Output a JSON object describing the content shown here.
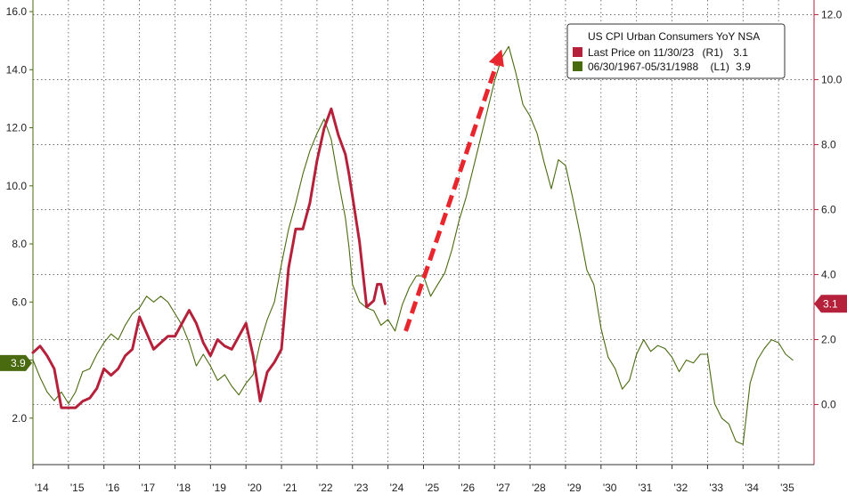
{
  "chart_data": {
    "type": "line",
    "title": "",
    "xlabel": "",
    "ylabel": "",
    "grid": true,
    "legend_position": "top-right",
    "legend": {
      "title": "US CPI Urban Consumers YoY NSA",
      "entries": [
        {
          "label": "Last Price on 11/30/23",
          "axis_tag": "(R1)",
          "value": "3.1",
          "color": "#b5213a"
        },
        {
          "label": "06/30/1967-05/31/1988",
          "axis_tag": "(L1)",
          "value": "3.9",
          "color": "#4a6a10"
        }
      ]
    },
    "x_axis": {
      "range": [
        2014.0,
        2036.0
      ],
      "ticks": [
        {
          "value": 2014,
          "label": "'14"
        },
        {
          "value": 2015,
          "label": "'15"
        },
        {
          "value": 2016,
          "label": "'16"
        },
        {
          "value": 2017,
          "label": "'17"
        },
        {
          "value": 2018,
          "label": "'18"
        },
        {
          "value": 2019,
          "label": "'19"
        },
        {
          "value": 2020,
          "label": "'20"
        },
        {
          "value": 2021,
          "label": "'21"
        },
        {
          "value": 2022,
          "label": "'22"
        },
        {
          "value": 2023,
          "label": "'23"
        },
        {
          "value": 2024,
          "label": "'24"
        },
        {
          "value": 2025,
          "label": "'25"
        },
        {
          "value": 2026,
          "label": "'26"
        },
        {
          "value": 2027,
          "label": "'27"
        },
        {
          "value": 2028,
          "label": "'28"
        },
        {
          "value": 2029,
          "label": "'29"
        },
        {
          "value": 2030,
          "label": "'30"
        },
        {
          "value": 2031,
          "label": "'31"
        },
        {
          "value": 2032,
          "label": "'32"
        },
        {
          "value": 2033,
          "label": "'33"
        },
        {
          "value": 2034,
          "label": "'34"
        },
        {
          "value": 2035,
          "label": "'35"
        }
      ]
    },
    "left_axis": {
      "range": [
        0.4,
        16.4
      ],
      "ticks": [
        {
          "value": 2,
          "label": "2.0"
        },
        {
          "value": 4,
          "label": "4.0"
        },
        {
          "value": 6,
          "label": "6.0"
        },
        {
          "value": 8,
          "label": "8.0"
        },
        {
          "value": 10,
          "label": "10.0"
        },
        {
          "value": 12,
          "label": "12.0"
        },
        {
          "value": 14,
          "label": "14.0"
        },
        {
          "value": 16,
          "label": "16.0"
        }
      ],
      "badge": {
        "value": 3.9,
        "label": "3.9",
        "color": "#4a6a10"
      }
    },
    "right_axis": {
      "range": [
        -1.85,
        12.45
      ],
      "ticks": [
        {
          "value": 0,
          "label": "0.0"
        },
        {
          "value": 2,
          "label": "2.0"
        },
        {
          "value": 4,
          "label": "4.0"
        },
        {
          "value": 6,
          "label": "6.0"
        },
        {
          "value": 8,
          "label": "8.0"
        },
        {
          "value": 10,
          "label": "10.0"
        },
        {
          "value": 12,
          "label": "12.0"
        }
      ],
      "badge": {
        "value": 3.1,
        "label": "3.1",
        "color": "#b5213a"
      }
    },
    "arrow": {
      "from": [
        2024.5,
        5.0
      ],
      "to": [
        2027.2,
        14.7
      ],
      "color": "#e8262e"
    },
    "series": [
      {
        "name": "06/30/1967-05/31/1988",
        "axis": "left",
        "color": "#4a6a10",
        "points": [
          [
            2014.0,
            4.0
          ],
          [
            2014.2,
            3.4
          ],
          [
            2014.4,
            2.9
          ],
          [
            2014.6,
            2.6
          ],
          [
            2014.8,
            2.9
          ],
          [
            2015.0,
            2.5
          ],
          [
            2015.2,
            2.9
          ],
          [
            2015.4,
            3.6
          ],
          [
            2015.6,
            3.7
          ],
          [
            2015.8,
            4.2
          ],
          [
            2016.0,
            4.6
          ],
          [
            2016.2,
            4.9
          ],
          [
            2016.4,
            4.7
          ],
          [
            2016.6,
            5.2
          ],
          [
            2016.8,
            5.6
          ],
          [
            2017.0,
            5.8
          ],
          [
            2017.2,
            6.2
          ],
          [
            2017.4,
            6.0
          ],
          [
            2017.6,
            6.2
          ],
          [
            2017.8,
            6.0
          ],
          [
            2018.0,
            5.6
          ],
          [
            2018.2,
            5.2
          ],
          [
            2018.4,
            4.6
          ],
          [
            2018.6,
            3.8
          ],
          [
            2018.8,
            4.2
          ],
          [
            2019.0,
            3.8
          ],
          [
            2019.2,
            3.3
          ],
          [
            2019.4,
            3.5
          ],
          [
            2019.6,
            3.1
          ],
          [
            2019.8,
            2.8
          ],
          [
            2020.0,
            3.2
          ],
          [
            2020.2,
            3.5
          ],
          [
            2020.4,
            4.6
          ],
          [
            2020.6,
            5.4
          ],
          [
            2020.8,
            6.0
          ],
          [
            2021.0,
            7.3
          ],
          [
            2021.2,
            8.5
          ],
          [
            2021.4,
            9.4
          ],
          [
            2021.6,
            10.4
          ],
          [
            2021.8,
            11.2
          ],
          [
            2022.0,
            11.8
          ],
          [
            2022.2,
            12.3
          ],
          [
            2022.4,
            11.6
          ],
          [
            2022.6,
            10.2
          ],
          [
            2022.8,
            8.9
          ],
          [
            2022.9,
            7.9
          ],
          [
            2023.0,
            6.6
          ],
          [
            2023.2,
            6.0
          ],
          [
            2023.4,
            5.8
          ],
          [
            2023.6,
            5.7
          ],
          [
            2023.8,
            5.2
          ],
          [
            2024.0,
            5.4
          ],
          [
            2024.2,
            5.0
          ],
          [
            2024.4,
            5.9
          ],
          [
            2024.6,
            6.5
          ],
          [
            2024.8,
            6.9
          ],
          [
            2025.0,
            6.9
          ],
          [
            2025.2,
            6.2
          ],
          [
            2025.4,
            6.6
          ],
          [
            2025.6,
            7.0
          ],
          [
            2025.8,
            7.8
          ],
          [
            2026.0,
            8.8
          ],
          [
            2026.2,
            9.6
          ],
          [
            2026.4,
            10.6
          ],
          [
            2026.6,
            11.6
          ],
          [
            2026.8,
            12.6
          ],
          [
            2027.0,
            13.6
          ],
          [
            2027.2,
            14.4
          ],
          [
            2027.4,
            14.8
          ],
          [
            2027.6,
            13.9
          ],
          [
            2027.8,
            12.8
          ],
          [
            2028.0,
            12.4
          ],
          [
            2028.2,
            11.8
          ],
          [
            2028.4,
            10.8
          ],
          [
            2028.6,
            9.9
          ],
          [
            2028.8,
            10.9
          ],
          [
            2029.0,
            10.7
          ],
          [
            2029.2,
            9.6
          ],
          [
            2029.4,
            8.4
          ],
          [
            2029.6,
            7.1
          ],
          [
            2029.8,
            6.6
          ],
          [
            2030.0,
            5.1
          ],
          [
            2030.2,
            4.1
          ],
          [
            2030.4,
            3.7
          ],
          [
            2030.6,
            3.0
          ],
          [
            2030.8,
            3.3
          ],
          [
            2031.0,
            4.2
          ],
          [
            2031.2,
            4.7
          ],
          [
            2031.4,
            4.3
          ],
          [
            2031.6,
            4.5
          ],
          [
            2031.8,
            4.4
          ],
          [
            2032.0,
            4.1
          ],
          [
            2032.2,
            3.6
          ],
          [
            2032.4,
            4.0
          ],
          [
            2032.6,
            3.9
          ],
          [
            2032.8,
            4.2
          ],
          [
            2033.0,
            4.2
          ],
          [
            2033.2,
            2.5
          ],
          [
            2033.4,
            2.0
          ],
          [
            2033.6,
            1.8
          ],
          [
            2033.8,
            1.2
          ],
          [
            2034.0,
            1.1
          ],
          [
            2034.2,
            3.2
          ],
          [
            2034.4,
            4.0
          ],
          [
            2034.6,
            4.4
          ],
          [
            2034.8,
            4.7
          ],
          [
            2035.0,
            4.6
          ],
          [
            2035.2,
            4.2
          ],
          [
            2035.4,
            4.0
          ]
        ]
      },
      {
        "name": "Last Price on 11/30/23",
        "axis": "right",
        "color": "#b5213a",
        "points": [
          [
            2014.0,
            1.6
          ],
          [
            2014.2,
            1.8
          ],
          [
            2014.4,
            1.5
          ],
          [
            2014.6,
            1.1
          ],
          [
            2014.8,
            -0.1
          ],
          [
            2015.0,
            -0.1
          ],
          [
            2015.2,
            -0.1
          ],
          [
            2015.4,
            0.1
          ],
          [
            2015.6,
            0.2
          ],
          [
            2015.8,
            0.5
          ],
          [
            2016.0,
            1.1
          ],
          [
            2016.2,
            0.9
          ],
          [
            2016.4,
            1.1
          ],
          [
            2016.6,
            1.5
          ],
          [
            2016.8,
            1.7
          ],
          [
            2017.0,
            2.7
          ],
          [
            2017.2,
            2.2
          ],
          [
            2017.4,
            1.7
          ],
          [
            2017.6,
            1.9
          ],
          [
            2017.8,
            2.1
          ],
          [
            2018.0,
            2.1
          ],
          [
            2018.2,
            2.5
          ],
          [
            2018.4,
            2.9
          ],
          [
            2018.6,
            2.5
          ],
          [
            2018.8,
            1.9
          ],
          [
            2019.0,
            1.5
          ],
          [
            2019.2,
            2.0
          ],
          [
            2019.4,
            1.8
          ],
          [
            2019.6,
            1.7
          ],
          [
            2019.8,
            2.1
          ],
          [
            2020.0,
            2.5
          ],
          [
            2020.2,
            1.5
          ],
          [
            2020.4,
            0.1
          ],
          [
            2020.6,
            1.0
          ],
          [
            2020.8,
            1.3
          ],
          [
            2021.0,
            1.7
          ],
          [
            2021.2,
            4.2
          ],
          [
            2021.4,
            5.4
          ],
          [
            2021.6,
            5.4
          ],
          [
            2021.8,
            6.2
          ],
          [
            2022.0,
            7.5
          ],
          [
            2022.2,
            8.5
          ],
          [
            2022.4,
            9.1
          ],
          [
            2022.6,
            8.3
          ],
          [
            2022.8,
            7.7
          ],
          [
            2022.9,
            7.1
          ],
          [
            2023.0,
            6.4
          ],
          [
            2023.2,
            5.0
          ],
          [
            2023.4,
            3.0
          ],
          [
            2023.6,
            3.2
          ],
          [
            2023.7,
            3.7
          ],
          [
            2023.8,
            3.7
          ],
          [
            2023.92,
            3.1
          ]
        ]
      }
    ]
  }
}
